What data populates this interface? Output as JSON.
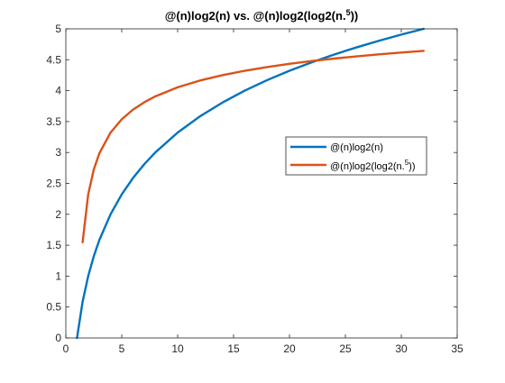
{
  "colors": {
    "background": "#ffffff",
    "axis": "#262626",
    "series1": "#0072BD",
    "series2": "#D95319"
  },
  "chart_data": {
    "type": "line",
    "title": {
      "text": "@(n)log2(n) vs. @(n)log2(log2(n.",
      "sup": "5",
      "after": "))"
    },
    "xlabel": "",
    "ylabel": "",
    "xlim": [
      0,
      35
    ],
    "ylim": [
      0,
      5
    ],
    "x_ticks": [
      0,
      5,
      10,
      15,
      20,
      25,
      30,
      35
    ],
    "y_ticks": [
      0,
      0.5,
      1,
      1.5,
      2,
      2.5,
      3,
      3.5,
      4,
      4.5,
      5
    ],
    "y_tick_labels": [
      "0",
      "0.5",
      "1",
      "1.5",
      "2",
      "2.5",
      "3",
      "3.5",
      "4",
      "4.5",
      "5"
    ],
    "grid": false,
    "legend_position": "right, upper-middle",
    "series": [
      {
        "name": "@(n)log2(n)",
        "color": "#0072BD",
        "x": [
          1,
          1.5,
          2,
          2.5,
          3,
          4,
          5,
          6,
          7,
          8,
          10,
          12,
          14,
          16,
          18,
          20,
          22,
          24,
          26,
          28,
          30,
          32
        ],
        "y": [
          0,
          0.585,
          1,
          1.322,
          1.585,
          2,
          2.322,
          2.585,
          2.807,
          3,
          3.322,
          3.585,
          3.807,
          4,
          4.17,
          4.322,
          4.459,
          4.585,
          4.7,
          4.807,
          4.907,
          5
        ]
      },
      {
        "name": "@(n)log2(log2(n.5))",
        "name_parts": {
          "text": "@(n)log2(log2(n.",
          "sup": "5",
          "after": "))"
        },
        "color": "#D95319",
        "x": [
          1.5,
          2,
          2.5,
          3,
          4,
          5,
          6,
          7,
          8,
          10,
          12,
          14,
          16,
          18,
          20,
          22,
          24,
          26,
          28,
          30,
          32
        ],
        "y": [
          1.548,
          2.322,
          2.725,
          2.987,
          3.322,
          3.537,
          3.692,
          3.811,
          3.907,
          4.054,
          4.164,
          4.25,
          4.322,
          4.382,
          4.434,
          4.479,
          4.519,
          4.555,
          4.587,
          4.617,
          4.644
        ]
      }
    ]
  }
}
